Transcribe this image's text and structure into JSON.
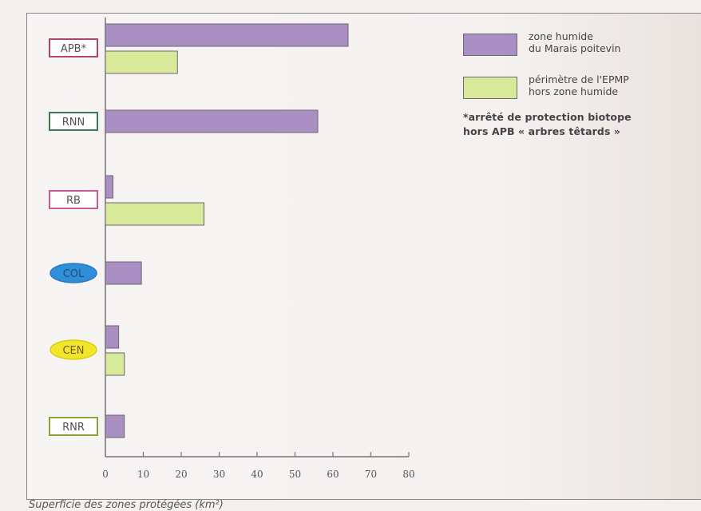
{
  "chart_data": {
    "type": "bar",
    "orientation": "horizontal",
    "categories": [
      "APB*",
      "RNN",
      "RB",
      "COL",
      "CEN",
      "RNR"
    ],
    "series": [
      {
        "name": "zone humide du Marais poitevin",
        "color": "#a98fc2",
        "values": [
          64,
          56,
          2,
          9.5,
          3.5,
          5
        ]
      },
      {
        "name": "périmètre de l'EPMP hors zone humide",
        "color": "#d9e99a",
        "values": [
          19,
          null,
          26,
          null,
          5,
          null
        ]
      }
    ],
    "xticks": [
      "0",
      "10",
      "20",
      "30",
      "40",
      "50",
      "60",
      "70",
      "80"
    ],
    "xlim": [
      0,
      80
    ],
    "legend_position": "top-right",
    "category_styles": [
      {
        "shape": "box",
        "border": "#b0426f",
        "fill": "#ffffff",
        "text_color": "#5a4b55"
      },
      {
        "shape": "box",
        "border": "#3a7a52",
        "fill": "#ffffff",
        "text_color": "#5a4b55"
      },
      {
        "shape": "box",
        "border": "#c95c95",
        "fill": "#ffffff",
        "text_color": "#5a4b55"
      },
      {
        "shape": "ellipse",
        "border": "#2a78c4",
        "fill": "#2f8fd8",
        "text_color": "#274a78"
      },
      {
        "shape": "ellipse",
        "border": "#d9cf1b",
        "fill": "#f1e62a",
        "text_color": "#6a5a2a"
      },
      {
        "shape": "box",
        "border": "#8aa43a",
        "fill": "#ffffff",
        "text_color": "#5a4b55"
      }
    ]
  },
  "legend": {
    "items": [
      {
        "line1": "zone humide",
        "line2": "du Marais poitevin",
        "color": "#a98fc2"
      },
      {
        "line1": "périmètre de l'EPMP",
        "line2": "hors zone humide",
        "color": "#d9e99a"
      }
    ],
    "note_line1": "*arrêté de protection biotope",
    "note_line2": "hors APB « arbres têtards »"
  },
  "caption": "Superficie des zones protégées (km²)"
}
